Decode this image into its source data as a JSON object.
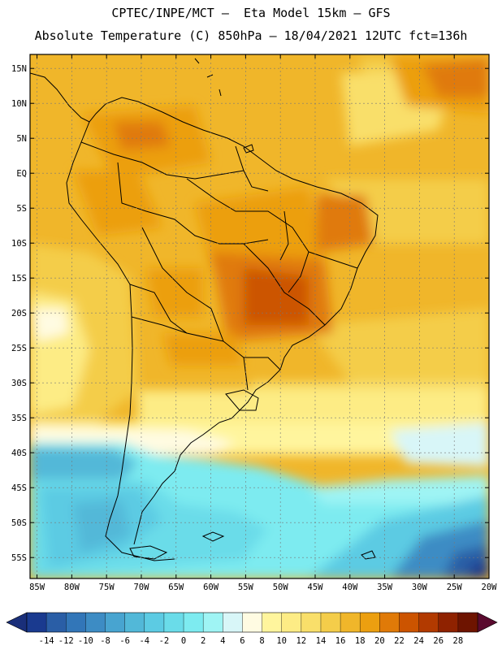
{
  "header": {
    "title_line1": "CPTEC/INPE/MCT –  Eta Model 15km – GFS",
    "title_line2": "Absolute Temperature (C) 850hPa – 18/04/2021 12UTC fct=136h"
  },
  "map": {
    "lon_range": [
      -86,
      -20
    ],
    "lat_range": [
      -58,
      17
    ],
    "lat_ticks": [
      "15N",
      "10N",
      "5N",
      "EQ",
      "5S",
      "10S",
      "15S",
      "20S",
      "25S",
      "30S",
      "35S",
      "40S",
      "45S",
      "50S",
      "55S"
    ],
    "lat_values": [
      15,
      10,
      5,
      0,
      -5,
      -10,
      -15,
      -20,
      -25,
      -30,
      -35,
      -40,
      -45,
      -50,
      -55
    ],
    "lon_ticks": [
      "85W",
      "80W",
      "75W",
      "70W",
      "65W",
      "60W",
      "55W",
      "50W",
      "45W",
      "40W",
      "35W",
      "30W",
      "25W",
      "20W"
    ],
    "lon_values": [
      -85,
      -80,
      -75,
      -70,
      -65,
      -60,
      -55,
      -50,
      -45,
      -40,
      -35,
      -30,
      -25,
      -20
    ],
    "grid": true
  },
  "colorbar": {
    "labels": [
      "-14",
      "-12",
      "-10",
      "-8",
      "-6",
      "-4",
      "-2",
      "0",
      "2",
      "4",
      "6",
      "8",
      "10",
      "12",
      "14",
      "16",
      "18",
      "20",
      "22",
      "24",
      "26",
      "28"
    ],
    "colors": [
      "#1a3a8f",
      "#2a5ea6",
      "#3276b8",
      "#3d8cc4",
      "#48a4d0",
      "#52b8d8",
      "#5ccbe3",
      "#6adce9",
      "#7debf0",
      "#9ff4f4",
      "#d8f6f8",
      "#fffbe2",
      "#fff59d",
      "#fdec85",
      "#f9df6a",
      "#f4cd4a",
      "#f0b62a",
      "#ec9f10",
      "#e07a08",
      "#cc5400",
      "#b23a00",
      "#8f2200",
      "#6e1400"
    ],
    "end_left": "#1a2f7a",
    "end_right": "#5a0a2e"
  }
}
